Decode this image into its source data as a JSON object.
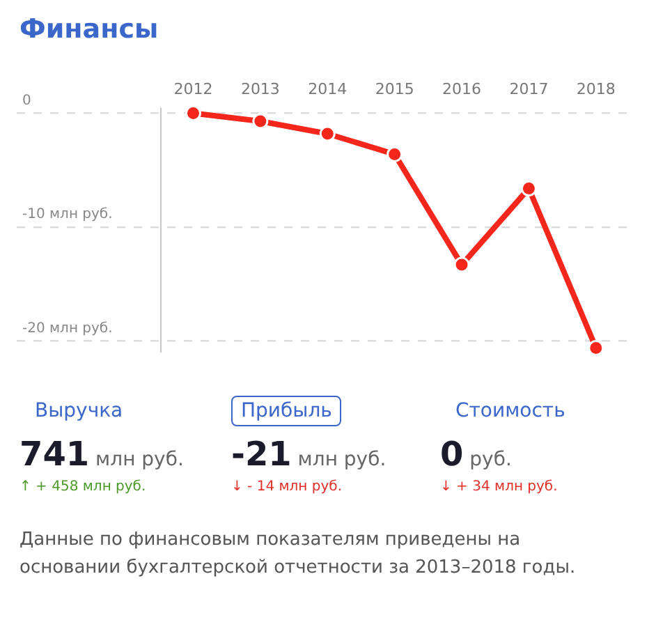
{
  "chart_data": {
    "type": "line",
    "title": "Финансы",
    "categories": [
      "2012",
      "2013",
      "2014",
      "2015",
      "2016",
      "2017",
      "2018"
    ],
    "series": [
      {
        "color": "#f5261b",
        "values": [
          0,
          -0.7,
          -1.8,
          -3.6,
          -13.3,
          -6.6,
          -20.6
        ]
      }
    ],
    "ylim": [
      -21,
      0.5
    ],
    "yticks": [
      {
        "value": 0,
        "label": "0"
      },
      {
        "value": -10,
        "label": "-10 млн руб."
      },
      {
        "value": -20,
        "label": "-20 млн руб."
      }
    ],
    "grid": "y",
    "legend": false,
    "marker": "circle",
    "line_style": "solid",
    "annotations": [
      "Выручка",
      "741 млн руб.",
      "↑ + 458 млн руб.",
      "Прибыль",
      "-21 млн руб.",
      "↓ - 14 млн руб.",
      "Стоимость",
      "0 руб.",
      "↓ + 34 млн руб.",
      "Данные по финансовым показателям приведены на основании бухгалтерской отчетности за 2013–2018 годы."
    ]
  }
}
